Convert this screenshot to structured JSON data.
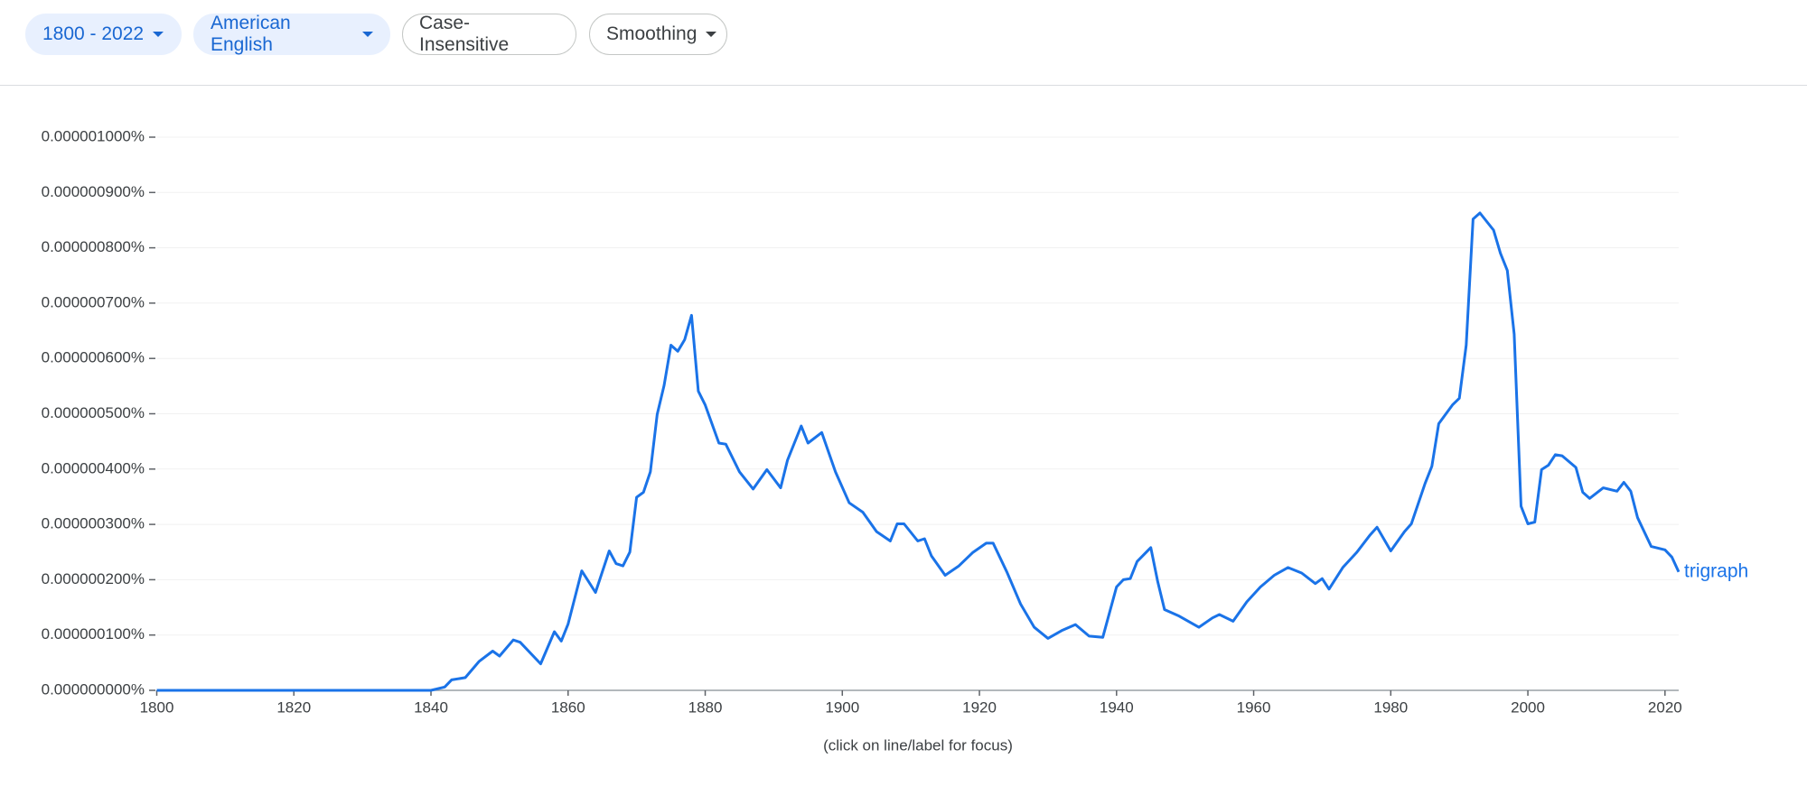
{
  "toolbar": {
    "buttons": [
      "1800 - 2022",
      "American English",
      "Case-Insensitive",
      "Smoothing"
    ]
  },
  "chart_data": {
    "type": "line",
    "xlim": [
      1800,
      2022
    ],
    "xticks": [
      1800,
      1820,
      1840,
      1860,
      1880,
      1900,
      1920,
      1940,
      1960,
      1980,
      2000,
      2020
    ],
    "ylim": [
      0,
      1e-06
    ],
    "yticks": [
      {
        "value": 0,
        "label": "0.000000000%"
      },
      {
        "value": 1e-07,
        "label": "0.000000100%"
      },
      {
        "value": 2e-07,
        "label": "0.000000200%"
      },
      {
        "value": 3e-07,
        "label": "0.000000300%"
      },
      {
        "value": 4e-07,
        "label": "0.000000400%"
      },
      {
        "value": 5e-07,
        "label": "0.000000500%"
      },
      {
        "value": 6e-07,
        "label": "0.000000600%"
      },
      {
        "value": 7e-07,
        "label": "0.000000700%"
      },
      {
        "value": 8e-07,
        "label": "0.000000800%"
      },
      {
        "value": 9e-07,
        "label": "0.000000900%"
      },
      {
        "value": 1e-06,
        "label": "0.000001000%"
      }
    ],
    "grid": true,
    "x": [
      1800,
      1840,
      1842,
      1843,
      1845,
      1847,
      1849,
      1850,
      1852,
      1853,
      1856,
      1858,
      1859,
      1860,
      1862,
      1864,
      1866,
      1867,
      1868,
      1869,
      1870,
      1871,
      1872,
      1873,
      1874,
      1875,
      1876,
      1877,
      1878,
      1879,
      1880,
      1882,
      1883,
      1885,
      1887,
      1889,
      1891,
      1892,
      1894,
      1895,
      1897,
      1899,
      1901,
      1903,
      1905,
      1907,
      1908,
      1909,
      1911,
      1912,
      1913,
      1915,
      1917,
      1919,
      1921,
      1922,
      1924,
      1926,
      1928,
      1930,
      1932,
      1934,
      1936,
      1938,
      1940,
      1941,
      1942,
      1943,
      1945,
      1946,
      1947,
      1949,
      1952,
      1954,
      1955,
      1957,
      1959,
      1961,
      1963,
      1965,
      1967,
      1969,
      1970,
      1971,
      1973,
      1975,
      1977,
      1978,
      1980,
      1982,
      1983,
      1985,
      1986,
      1987,
      1989,
      1990,
      1991,
      1992,
      1993,
      1995,
      1996,
      1997,
      1998,
      1999,
      2000,
      2001,
      2002,
      2003,
      2004,
      2005,
      2007,
      2008,
      2009,
      2011,
      2013,
      2014,
      2015,
      2016,
      2018,
      2020,
      2021,
      2022
    ],
    "series": [
      {
        "name": "trigraph",
        "color": "#1a73e8",
        "values": [
          0,
          0,
          6e-09,
          1.9e-08,
          2.3e-08,
          5.2e-08,
          7.1e-08,
          6.2e-08,
          9.1e-08,
          8.7e-08,
          4.8e-08,
          1.06e-07,
          8.9e-08,
          1.2e-07,
          2.16e-07,
          1.77e-07,
          2.52e-07,
          2.29e-07,
          2.25e-07,
          2.5e-07,
          3.49e-07,
          3.58e-07,
          3.95e-07,
          4.99e-07,
          5.51e-07,
          6.24e-07,
          6.13e-07,
          6.34e-07,
          6.78e-07,
          5.41e-07,
          5.16e-07,
          4.47e-07,
          4.45e-07,
          3.95e-07,
          3.64e-07,
          3.99e-07,
          3.66e-07,
          4.16e-07,
          4.78e-07,
          4.47e-07,
          4.66e-07,
          3.95e-07,
          3.39e-07,
          3.22e-07,
          2.87e-07,
          2.7e-07,
          3.01e-07,
          3.01e-07,
          2.7e-07,
          2.74e-07,
          2.43e-07,
          2.08e-07,
          2.25e-07,
          2.49e-07,
          2.66e-07,
          2.66e-07,
          2.14e-07,
          1.56e-07,
          1.14e-07,
          9.4e-08,
          1.08e-07,
          1.19e-07,
          9.8e-08,
          9.6e-08,
          1.87e-07,
          2e-07,
          2.02e-07,
          2.33e-07,
          2.58e-07,
          1.97e-07,
          1.46e-07,
          1.35e-07,
          1.14e-07,
          1.31e-07,
          1.37e-07,
          1.25e-07,
          1.6e-07,
          1.87e-07,
          2.08e-07,
          2.22e-07,
          2.12e-07,
          1.93e-07,
          2.02e-07,
          1.83e-07,
          2.22e-07,
          2.49e-07,
          2.81e-07,
          2.95e-07,
          2.52e-07,
          2.87e-07,
          3.01e-07,
          3.74e-07,
          4.05e-07,
          4.82e-07,
          5.16e-07,
          5.28e-07,
          6.24e-07,
          8.52e-07,
          8.63e-07,
          8.32e-07,
          7.9e-07,
          7.59e-07,
          6.44e-07,
          3.33e-07,
          3.01e-07,
          3.04e-07,
          3.99e-07,
          4.07e-07,
          4.26e-07,
          4.24e-07,
          4.03e-07,
          3.58e-07,
          3.47e-07,
          3.66e-07,
          3.6e-07,
          3.76e-07,
          3.6e-07,
          3.12e-07,
          2.6e-07,
          2.54e-07,
          2.41e-07,
          2.14e-07
        ]
      }
    ],
    "annotation": "(click on line/label for focus)"
  }
}
